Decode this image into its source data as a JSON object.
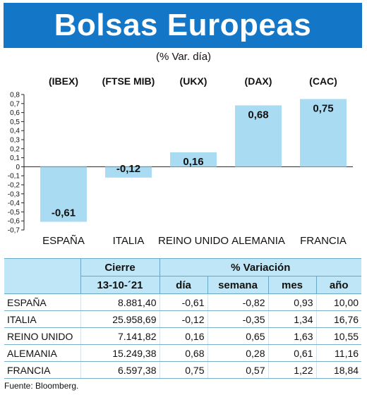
{
  "header": {
    "title": "Bolsas Europeas",
    "subtitle": "(% Var. día)"
  },
  "chart_data": {
    "type": "bar",
    "indices": [
      "(IBEX)",
      "(FTSE MIB)",
      "(UKX)",
      "(DAX)",
      "(CAC)"
    ],
    "categories": [
      "ESPAÑA",
      "ITALIA",
      "REINO UNIDO",
      "ALEMANIA",
      "FRANCIA"
    ],
    "values": [
      -0.61,
      -0.12,
      0.16,
      0.68,
      0.75
    ],
    "value_labels": [
      "-0,61",
      "-0,12",
      "0,16",
      "0,68",
      "0,75"
    ],
    "ylim": [
      -0.7,
      0.8
    ],
    "yticks": [
      "0,8",
      "0,7",
      "0,6",
      "0,5",
      "0,4",
      "0,3",
      "0,2",
      "0,1",
      "0",
      "-0,1",
      "-0,2",
      "-0,3",
      "-0,4",
      "-0,5",
      "-0,6",
      "-0,7"
    ],
    "bar_color": "#a9dcf3",
    "grid": false
  },
  "table": {
    "group_headers": [
      "Cierre",
      "% Variación"
    ],
    "sub_headers": [
      "13-10-´21",
      "día",
      "semana",
      "mes",
      "año"
    ],
    "rows": [
      [
        "ESPAÑA",
        "8.881,40",
        "-0,61",
        "-0,82",
        "0,93",
        "10,00"
      ],
      [
        "ITALIA",
        "25.958,69",
        "-0,12",
        "-0,35",
        "1,34",
        "16,76"
      ],
      [
        "REINO UNIDO",
        "7.141,82",
        "0,16",
        "0,65",
        "1,63",
        "10,55"
      ],
      [
        "ALEMANIA",
        "15.249,38",
        "0,68",
        "0,28",
        "0,61",
        "11,16"
      ],
      [
        "FRANCIA",
        "6.597,38",
        "0,75",
        "0,57",
        "1,22",
        "18,84"
      ]
    ]
  },
  "footer": {
    "source": "Fuente: Bloomberg."
  },
  "colors": {
    "banner": "#1476c6",
    "header_fill": "#bfe6f6"
  }
}
